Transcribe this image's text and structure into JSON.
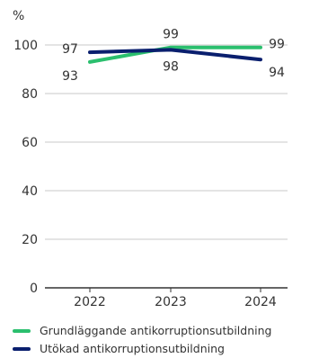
{
  "chart_data": {
    "type": "line",
    "title": "",
    "unit_label": "%",
    "xlabel": "",
    "ylabel": "",
    "x": [
      "2022",
      "2023",
      "2024"
    ],
    "ylim": [
      0,
      100
    ],
    "yticks": [
      0,
      20,
      40,
      60,
      80,
      100
    ],
    "grid": true,
    "legend_position": "bottom-left",
    "series": [
      {
        "name": "Grundläggande antikorruptionsutbildning",
        "values": [
          93,
          99,
          99
        ],
        "color": "#2bbf6e"
      },
      {
        "name": "Utökad antikorruptionsutbildning",
        "values": [
          97,
          98,
          94
        ],
        "color": "#0a1f6e"
      }
    ]
  }
}
